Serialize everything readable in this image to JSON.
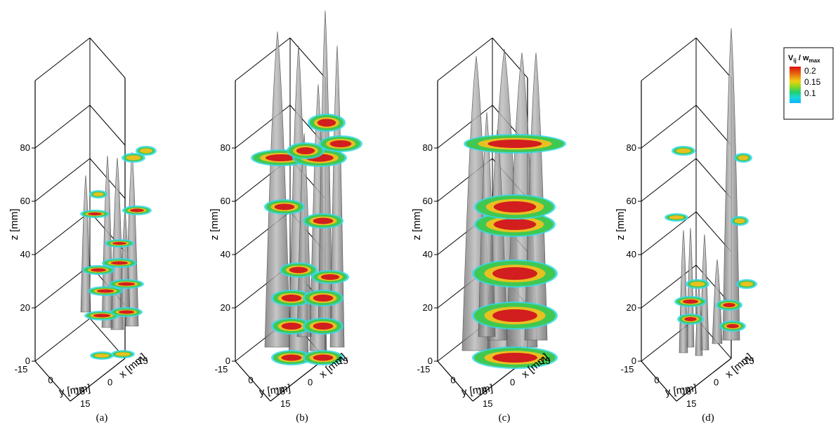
{
  "panels": [
    {
      "caption": "(a)",
      "z_ticks": [
        "0",
        "20",
        "40",
        "60",
        "80"
      ],
      "y_ticks": [
        "-15",
        "0",
        "15"
      ],
      "x_ticks": [
        "-15",
        "0",
        "15"
      ],
      "z_label": "z [mm]",
      "y_label": "y [mm]",
      "x_label": "x [mm]"
    },
    {
      "caption": "(b)",
      "z_ticks": [
        "0",
        "20",
        "40",
        "60",
        "80"
      ],
      "y_ticks": [
        "-15",
        "0",
        "15"
      ],
      "x_ticks": [
        "-15",
        "0",
        "15"
      ],
      "z_label": "z [mm]",
      "y_label": "y [mm]",
      "x_label": "x [mm]"
    },
    {
      "caption": "(c)",
      "z_ticks": [
        "0",
        "20",
        "40",
        "60",
        "80"
      ],
      "y_ticks": [
        "-15",
        "0",
        "15"
      ],
      "x_ticks": [
        "-15",
        "0",
        "15"
      ],
      "z_label": "z [mm]",
      "y_label": "y [mm]",
      "x_label": "x [mm]"
    },
    {
      "caption": "(d)",
      "z_ticks": [
        "0",
        "20",
        "40",
        "60",
        "80"
      ],
      "y_ticks": [
        "-15",
        "0",
        "15"
      ],
      "x_ticks": [
        "-15",
        "0",
        "15"
      ],
      "z_label": "z [mm]",
      "y_label": "y [mm]",
      "x_label": "x [mm]"
    }
  ],
  "legend": {
    "title_main": "V",
    "title_sub1": "ij",
    "title_mid": " / w",
    "title_sub2": "max",
    "entries": [
      "0.2",
      "0.15",
      "0.1"
    ],
    "gradient_colors": [
      "#dd1010",
      "#e86a10",
      "#f0d010",
      "#8ad820",
      "#20d070",
      "#18d8d8",
      "#10b0ff"
    ]
  },
  "colors": {
    "isosurface": "#8e8e8e",
    "contour_high": "#d21e1e",
    "contour_mid": "#e8c020",
    "contour_low": "#40c850",
    "contour_edge": "#30d8e8"
  }
}
